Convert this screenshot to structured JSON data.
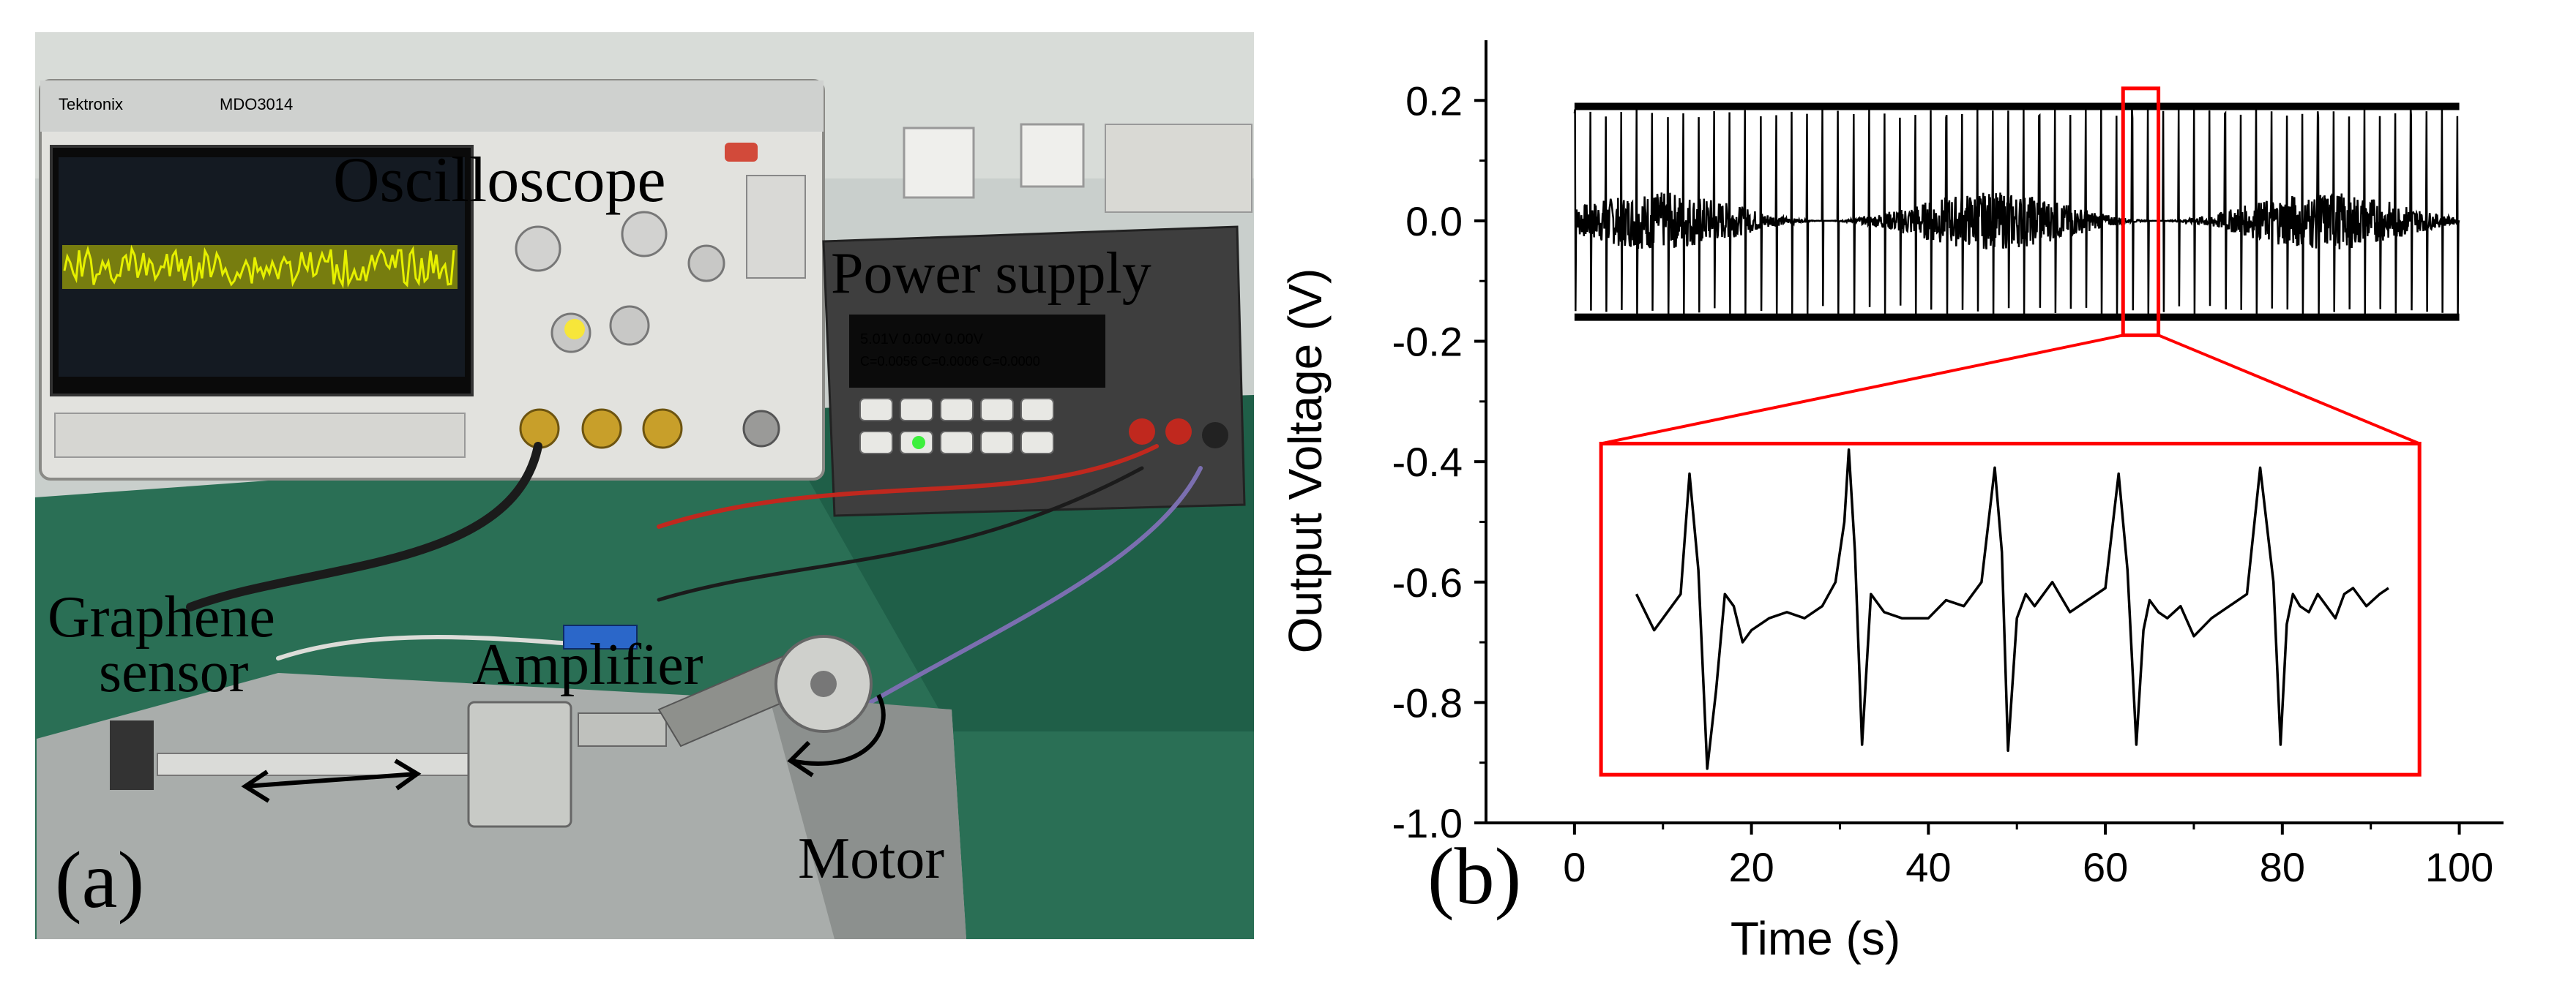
{
  "panel_a": {
    "label": "(a)",
    "annotations": {
      "oscilloscope": "Oscilloscope",
      "power_supply": "Power supply",
      "graphene_line1": "Graphene",
      "graphene_line2": "sensor",
      "amplifier": "Amplifier",
      "motor": "Motor"
    },
    "device_text": {
      "brand": "Tektronix",
      "model": "MDO3014",
      "psu_readout_line1": "5.01V    0.00V   0.00V",
      "psu_readout_line2": "C=0.0056 C=0.0006 C=0.0000"
    }
  },
  "panel_b": {
    "label": "(b)"
  },
  "chart_data": {
    "type": "line",
    "xlabel": "Time (s)",
    "ylabel": "Output Voltage (V)",
    "xlim": [
      -10,
      105
    ],
    "ylim": [
      -1.0,
      0.3
    ],
    "xticks": [
      "0",
      "20",
      "40",
      "60",
      "80",
      "100"
    ],
    "yticks": [
      "0.2",
      "0.0",
      "-0.2",
      "-0.4",
      "-0.6",
      "-0.8",
      "-1.0"
    ],
    "grid": false,
    "series": [
      {
        "kind": "long-recording",
        "x_range": [
          0,
          100
        ],
        "baseline": 0.0,
        "envelope_top": 0.19,
        "envelope_bottom": -0.16,
        "pulse_period_s": 1.75,
        "noise_amplitude": 0.04,
        "color": "#000000"
      },
      {
        "kind": "zoom-inset",
        "x": [
          7,
          9,
          11,
          12,
          13,
          14,
          15,
          16,
          17,
          18,
          19,
          20,
          22,
          24,
          26,
          28,
          29.5,
          30.5,
          31,
          31.7,
          32.5,
          33.5,
          35,
          37,
          40,
          42,
          44,
          46,
          47.5,
          48.3,
          49,
          50,
          51,
          52,
          54,
          56,
          58,
          60,
          61.5,
          62.5,
          63.5,
          64.3,
          65,
          66,
          67,
          68.5,
          70,
          72,
          74,
          76,
          77.5,
          79,
          79.8,
          80.5,
          81.2,
          82,
          83,
          84,
          85,
          86,
          87,
          88,
          89.5,
          91,
          92
        ],
        "y": [
          -0.62,
          -0.68,
          -0.64,
          -0.62,
          -0.42,
          -0.58,
          -0.91,
          -0.78,
          -0.62,
          -0.64,
          -0.7,
          -0.68,
          -0.66,
          -0.65,
          -0.66,
          -0.64,
          -0.6,
          -0.5,
          -0.38,
          -0.55,
          -0.87,
          -0.62,
          -0.65,
          -0.66,
          -0.66,
          -0.63,
          -0.64,
          -0.6,
          -0.41,
          -0.55,
          -0.88,
          -0.66,
          -0.62,
          -0.64,
          -0.6,
          -0.65,
          -0.63,
          -0.61,
          -0.42,
          -0.58,
          -0.87,
          -0.68,
          -0.63,
          -0.65,
          -0.66,
          -0.64,
          -0.69,
          -0.66,
          -0.64,
          -0.62,
          -0.41,
          -0.6,
          -0.87,
          -0.67,
          -0.62,
          -0.64,
          -0.65,
          -0.62,
          -0.64,
          -0.66,
          -0.62,
          -0.61,
          -0.64,
          -0.62,
          -0.61
        ],
        "color": "#000000"
      }
    ]
  },
  "colors": {
    "zoom_box": "#ff0000",
    "trace": "#000000",
    "axis": "#000000",
    "scope_trace": "#e6f000"
  }
}
